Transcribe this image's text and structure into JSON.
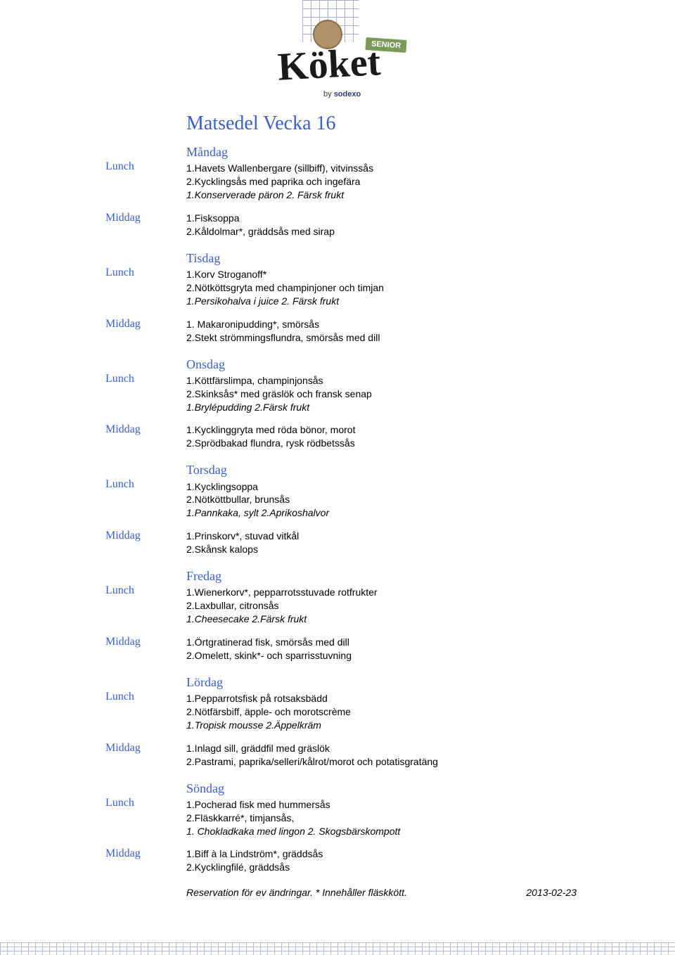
{
  "logo": {
    "brand": "Köket",
    "badge": "SENIOR",
    "byline": "by",
    "company": "sodexo"
  },
  "title": "Matsedel Vecka 16",
  "meal_labels": {
    "lunch": "Lunch",
    "middag": "Middag"
  },
  "days": [
    {
      "name": "Måndag",
      "lunch": [
        "1.Havets Wallenbergare (sillbiff), vitvinssås",
        "2.Kycklingsås med paprika och ingefära"
      ],
      "lunch_dessert": "1.Konserverade päron   2. Färsk frukt",
      "middag": [
        "1.Fisksoppa",
        "2.Kåldolmar*, gräddsås med sirap"
      ]
    },
    {
      "name": "Tisdag",
      "lunch": [
        "1.Korv Stroganoff*",
        "2.Nötköttsgryta med champinjoner och timjan"
      ],
      "lunch_dessert": "1.Persikohalva i juice   2. Färsk frukt",
      "middag": [
        "1. Makaronipudding*, smörsås",
        "2.Stekt strömmingsflundra, smörsås med dill"
      ]
    },
    {
      "name": "Onsdag",
      "lunch": [
        "1.Köttfärslimpa, champinjonsås",
        "2.Skinksås* med gräslök och fransk senap"
      ],
      "lunch_dessert": "1.Brylépudding  2.Färsk frukt",
      "middag": [
        "1.Kycklinggryta med röda bönor, morot",
        "2.Sprödbakad flundra, rysk rödbetssås"
      ]
    },
    {
      "name": "Torsdag",
      "lunch": [
        "1.Kycklingsoppa",
        "2.Nötköttbullar, brunsås"
      ],
      "lunch_dessert": "1.Pannkaka, sylt  2.Aprikoshalvor",
      "middag": [
        "1.Prinskorv*, stuvad vitkål",
        "2.Skånsk kalops"
      ]
    },
    {
      "name": "Fredag",
      "lunch": [
        " 1.Wienerkorv*, pepparrotsstuvade rotfrukter",
        "2.Laxbullar, citronsås"
      ],
      "lunch_dessert": "1.Cheesecake  2.Färsk frukt",
      "middag": [
        "1.Örtgratinerad fisk, smörsås med dill",
        "2.Omelett, skink*- och sparrisstuvning"
      ]
    },
    {
      "name": "Lördag",
      "lunch": [
        "1.Pepparrotsfisk på rotsaksbädd",
        "2.Nötfärsbiff, äpple- och morotscrème"
      ],
      "lunch_dessert": "1.Tropisk mousse  2.Äppelkräm",
      "middag": [
        "1.Inlagd sill, gräddfil med gräslök",
        "2.Pastrami, paprika/selleri/kålrot/morot och potatisgratäng"
      ]
    },
    {
      "name": "Söndag",
      "lunch": [
        "1.Pocherad fisk med hummersås",
        "2.Fläskkarré*, timjansås,"
      ],
      "lunch_dessert": "1. Chokladkaka med lingon               2. Skogsbärskompott",
      "middag": [
        "1.Biff à la Lindström*, gräddsås",
        "2.Kycklingfilé, gräddsås"
      ]
    }
  ],
  "footer": {
    "note": "Reservation för ev ändringar.  * Innehåller fläskkött.",
    "date": "2013-02-23"
  }
}
